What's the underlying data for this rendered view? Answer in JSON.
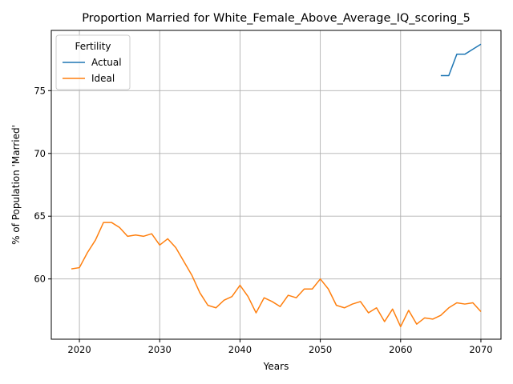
{
  "chart_data": {
    "type": "line",
    "title": "Proportion Married for White_Female_Above_Average_IQ_scoring_5",
    "xlabel": "Years",
    "ylabel": "% of Population 'Married'",
    "xlim": [
      2016.5,
      2072.5
    ],
    "ylim": [
      55.2,
      79.8
    ],
    "xticks": [
      2020,
      2030,
      2040,
      2050,
      2060,
      2070
    ],
    "yticks": [
      60,
      65,
      70,
      75
    ],
    "grid": true,
    "legend": {
      "title": "Fertility",
      "placement": "top-left"
    },
    "series": [
      {
        "name": "Actual",
        "color": "#1f77b4",
        "x": [
          2065,
          2066,
          2067,
          2068,
          2069,
          2070
        ],
        "y": [
          76.2,
          76.2,
          77.9,
          77.9,
          78.3,
          78.7
        ]
      },
      {
        "name": "Ideal",
        "color": "#ff7f0e",
        "x": [
          2019,
          2020,
          2021,
          2022,
          2023,
          2024,
          2025,
          2026,
          2027,
          2028,
          2029,
          2030,
          2031,
          2032,
          2033,
          2034,
          2035,
          2036,
          2037,
          2038,
          2039,
          2040,
          2041,
          2042,
          2043,
          2044,
          2045,
          2046,
          2047,
          2048,
          2049,
          2050,
          2051,
          2052,
          2053,
          2054,
          2055,
          2056,
          2057,
          2058,
          2059,
          2060,
          2061,
          2062,
          2063,
          2064,
          2065,
          2066,
          2067,
          2068,
          2069,
          2070
        ],
        "y": [
          60.8,
          60.9,
          62.1,
          63.1,
          64.5,
          64.5,
          64.1,
          63.4,
          63.5,
          63.4,
          63.6,
          62.7,
          63.2,
          62.5,
          61.4,
          60.3,
          58.9,
          57.9,
          57.7,
          58.3,
          58.6,
          59.5,
          58.6,
          57.3,
          58.5,
          58.2,
          57.8,
          58.7,
          58.5,
          59.2,
          59.2,
          60.0,
          59.2,
          57.9,
          57.7,
          58.0,
          58.2,
          57.3,
          57.7,
          56.6,
          57.6,
          56.2,
          57.5,
          56.4,
          56.9,
          56.8,
          57.1,
          57.7,
          58.1,
          58.0,
          58.1,
          57.4
        ]
      }
    ]
  }
}
